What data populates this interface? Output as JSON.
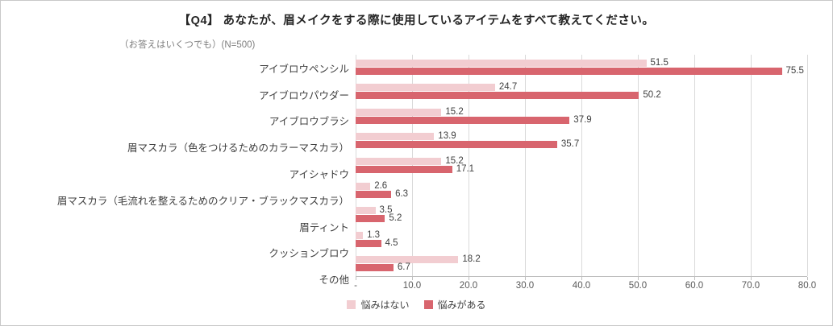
{
  "chart_data": {
    "type": "bar",
    "orientation": "horizontal",
    "title": "【Q4】 あなたが、眉メイクをする際に使用しているアイテムをすべて教えてください。",
    "subtitle": "（お答えはいくつでも）(N=500)",
    "categories": [
      "アイブロウペンシル",
      "アイブロウパウダー",
      "アイブロウブラシ",
      "眉マスカラ（色をつけるためのカラーマスカラ）",
      "アイシャドウ",
      "眉マスカラ（毛流れを整えるためのクリア・ブラックマスカラ）",
      "眉ティント",
      "クッションブロウ",
      "その他"
    ],
    "series": [
      {
        "name": "悩みはない",
        "color": "#f2cdd1",
        "values": [
          51.5,
          24.7,
          15.2,
          13.9,
          15.2,
          2.6,
          3.5,
          1.3,
          18.2
        ]
      },
      {
        "name": "悩みがある",
        "color": "#d8656e",
        "values": [
          75.5,
          50.2,
          37.9,
          35.7,
          17.1,
          6.3,
          5.2,
          4.5,
          6.7
        ]
      }
    ],
    "xlim": [
      0,
      80
    ],
    "x_ticks": [
      "-",
      "10.0",
      "20.0",
      "30.0",
      "40.0",
      "50.0",
      "60.0",
      "70.0",
      "80.0"
    ],
    "grid": true,
    "legend_position": "bottom"
  }
}
